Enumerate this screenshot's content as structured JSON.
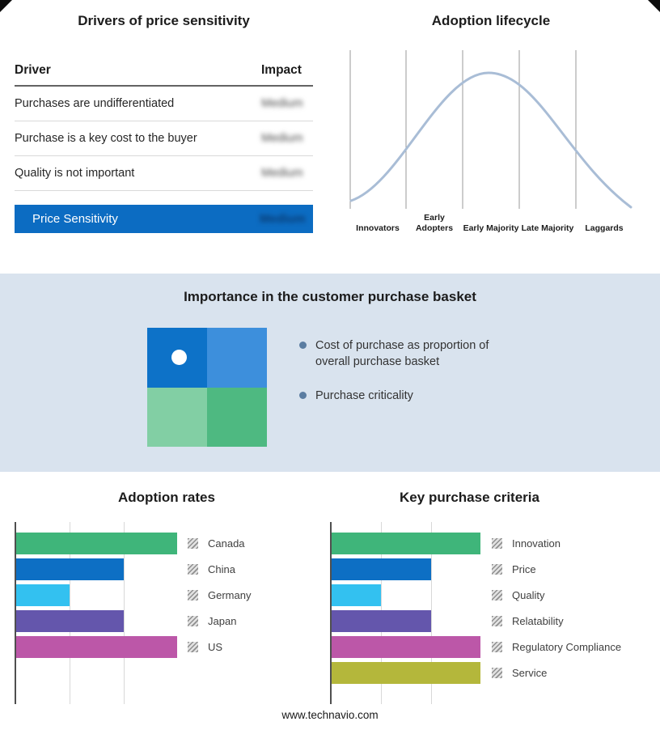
{
  "page": {
    "footer_link": "www.technavio.com",
    "middle_band_color": "#d9e3ee"
  },
  "drivers_table": {
    "title": "Drivers of price sensitivity",
    "columns": {
      "driver": "Driver",
      "impact": "Impact"
    },
    "rows": [
      {
        "driver": "Purchases are undifferentiated",
        "impact": "Medium"
      },
      {
        "driver": "Purchase is a key cost to the buyer",
        "impact": "Medium"
      },
      {
        "driver": "Quality is not important",
        "impact": "Medium"
      }
    ],
    "highlight": {
      "driver": "Price Sensitivity",
      "impact": "Medium"
    },
    "highlight_color": "#0c6cc2"
  },
  "purchase_basket": {
    "title": "Importance in the customer purchase basket",
    "bullets": [
      "Cost of purchase as proportion of overall purchase basket",
      "Purchase criticality"
    ],
    "quadrant_colors": [
      "#0d72c8",
      "#3d8fdc",
      "#82cfa4",
      "#4eb981"
    ]
  },
  "chart_data": [
    {
      "type": "line",
      "title": "Adoption lifecycle",
      "categories": [
        "Innovators",
        "Early Adopters",
        "Early Majority",
        "Late Majority",
        "Laggards"
      ],
      "values": [
        5,
        50,
        100,
        50,
        5
      ],
      "curve_color": "#a9bdd6",
      "xlabel": "",
      "ylabel": "",
      "layout": "bell curve over 5 stage bands, vertical gray band separators, no numeric axes"
    },
    {
      "type": "bar",
      "title": "Adoption rates",
      "orientation": "horizontal",
      "categories": [
        "Canada",
        "China",
        "Germany",
        "Japan",
        "US"
      ],
      "values": [
        100,
        67,
        33,
        67,
        100
      ],
      "colors": [
        "#3fb57a",
        "#0d6fc4",
        "#33c1f0",
        "#6456ac",
        "#bc57a8"
      ],
      "xlim": [
        0,
        100
      ],
      "layout": "unlabeled axis, light gridlines at thirds, hatched legend swatches at right"
    },
    {
      "type": "bar",
      "title": "Key purchase criteria",
      "orientation": "horizontal",
      "categories": [
        "Innovation",
        "Price",
        "Quality",
        "Relatability",
        "Regulatory Compliance",
        "Service"
      ],
      "values": [
        100,
        67,
        33,
        67,
        100,
        100
      ],
      "colors": [
        "#3fb57a",
        "#0d6fc4",
        "#33c1f0",
        "#6456ac",
        "#bc57a8",
        "#b4b73b"
      ],
      "xlim": [
        0,
        100
      ],
      "layout": "unlabeled axis, light gridlines at thirds, hatched legend swatches at right"
    }
  ]
}
